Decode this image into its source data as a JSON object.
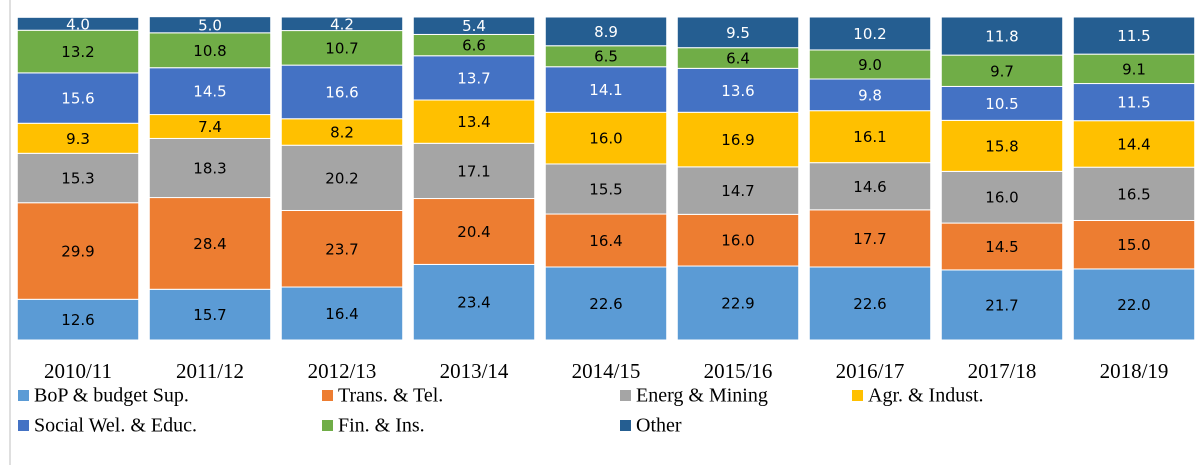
{
  "chart_data": {
    "type": "stacked_bar",
    "categories": [
      "2010/11",
      "2011/12",
      "2012/13",
      "2013/14",
      "2014/15",
      "2015/16",
      "2016/17",
      "2017/18",
      "2018/19"
    ],
    "ylim": [
      0,
      100
    ],
    "series": [
      {
        "name": "BoP & budget Sup.",
        "color": "#5b9bd5",
        "label_color": "#000000",
        "values": [
          12.6,
          15.7,
          16.4,
          23.4,
          22.6,
          22.9,
          22.6,
          21.7,
          22.0
        ],
        "value_labels": [
          "12.6",
          "15.7",
          "16.4",
          "23.4",
          "22.6",
          "22.9",
          "22.6",
          "21.7",
          "22.0"
        ]
      },
      {
        "name": "Trans. & Tel.",
        "color": "#ed7d31",
        "label_color": "#000000",
        "values": [
          29.9,
          28.4,
          23.7,
          20.4,
          16.4,
          16.0,
          17.7,
          14.5,
          15.0
        ],
        "value_labels": [
          "29.9",
          "28.4",
          "23.7",
          "20.4",
          "16.4",
          "16.0",
          "17.7",
          "14.5",
          "15.0"
        ]
      },
      {
        "name": "Energ & Mining",
        "color": "#a5a5a5",
        "label_color": "#000000",
        "values": [
          15.3,
          18.3,
          20.2,
          17.1,
          15.5,
          14.7,
          14.6,
          16.0,
          16.5
        ],
        "value_labels": [
          "15.3",
          "18.3",
          "20.2",
          "17.1",
          "15.5",
          "14.7",
          "14.6",
          "16.0",
          "16.5"
        ]
      },
      {
        "name": "Agr. & Indust.",
        "color": "#ffc000",
        "label_color": "#000000",
        "values": [
          9.3,
          7.4,
          8.2,
          13.4,
          16.0,
          16.9,
          16.1,
          15.8,
          14.4
        ],
        "value_labels": [
          "9.3",
          "7.4",
          "8.2",
          "13.4",
          "16.0",
          "16.9",
          "16.1",
          "15.8",
          "14.4"
        ]
      },
      {
        "name": "Social Wel. & Educ.",
        "color": "#4472c4",
        "label_color": "#ffffff",
        "values": [
          15.6,
          14.5,
          16.6,
          13.7,
          14.1,
          13.6,
          9.8,
          10.5,
          11.5
        ],
        "value_labels": [
          "15.6",
          "14.5",
          "16.6",
          "13.7",
          "14.1",
          "13.6",
          "9.8",
          "10.5",
          "11.5"
        ]
      },
      {
        "name": "Fin. & Ins.",
        "color": "#70ad47",
        "label_color": "#000000",
        "values": [
          13.2,
          10.8,
          10.7,
          6.6,
          6.5,
          6.4,
          9.0,
          9.7,
          9.1
        ],
        "value_labels": [
          "13.2",
          "10.8",
          "10.7",
          "6.6",
          "6.5",
          "6.4",
          "9.0",
          "9.7",
          "9.1"
        ]
      },
      {
        "name": "Other",
        "color": "#255e91",
        "label_color": "#ffffff",
        "values": [
          4.0,
          5.0,
          4.2,
          5.4,
          8.9,
          9.5,
          10.2,
          11.8,
          11.5
        ],
        "value_labels": [
          "4.0",
          "5.0",
          "4.2",
          "5.4",
          "8.9",
          "9.5",
          "10.2",
          "11.8",
          "11.5"
        ]
      }
    ]
  }
}
